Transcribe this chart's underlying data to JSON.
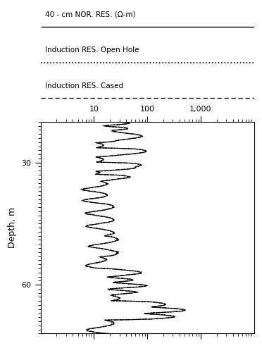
{
  "title_line1": "40 - cm NOR. RES. (Ω-m)",
  "title_line2": "Induction RES. Open Hole",
  "title_line3": "Induction RES. Cased",
  "ylabel": "Depth, m",
  "xmin": 1,
  "xmax": 10000,
  "ymin": 20,
  "ymax": 72,
  "depth_start": 20,
  "depth_end": 72,
  "figsize": [
    3.72,
    5.01
  ],
  "dpi": 100,
  "bg_color": "#ffffff",
  "line_color": "#000000"
}
